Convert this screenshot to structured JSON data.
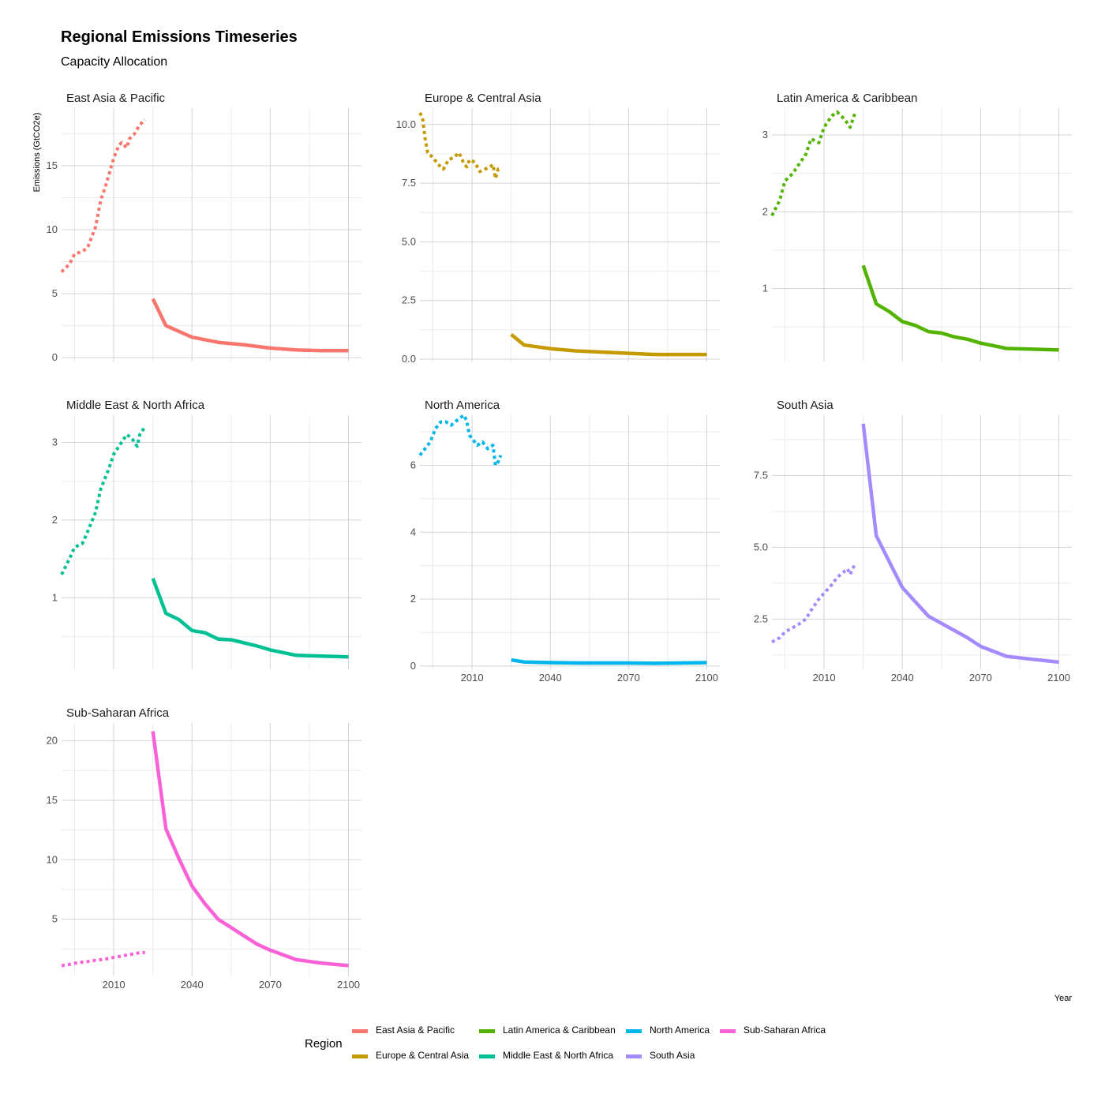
{
  "title": "Regional Emissions Timeseries",
  "subtitle": "Capacity Allocation",
  "chart_data": {
    "type": "line",
    "ylabel": "Emissions (GtCO2e)",
    "xlabel": "Year",
    "xlim": [
      1990,
      2105
    ],
    "x_ticks": [
      2010,
      2040,
      2070,
      2100
    ],
    "grid": true,
    "legend": {
      "title": "Region",
      "placement": "bottom"
    },
    "line_styles": {
      "historical": "dotted",
      "projection": "solid"
    },
    "panels": [
      {
        "name": "East Asia & Pacific",
        "color": "#F8766D",
        "ylim": [
          -0.3,
          19.5
        ],
        "y_ticks": [
          0,
          5,
          10,
          15
        ],
        "y_tick_labels": [
          "0",
          "5",
          "10",
          "15"
        ],
        "historical": {
          "x": [
            1990,
            1993,
            1995,
            1998,
            2000,
            2003,
            2005,
            2007,
            2010,
            2012,
            2013,
            2015,
            2016,
            2018,
            2020,
            2022
          ],
          "y": [
            6.7,
            7.3,
            8.1,
            8.3,
            8.6,
            10.2,
            12.3,
            13.5,
            15.6,
            16.6,
            16.8,
            16.4,
            17.1,
            17.5,
            18.2,
            18.6
          ]
        },
        "projection": {
          "x": [
            2025,
            2030,
            2040,
            2050,
            2060,
            2070,
            2080,
            2090,
            2100
          ],
          "y": [
            4.6,
            2.5,
            1.6,
            1.2,
            1.0,
            0.75,
            0.6,
            0.55,
            0.55
          ]
        }
      },
      {
        "name": "Europe & Central Asia",
        "color": "#C49A00",
        "ylim": [
          -0.1,
          10.7
        ],
        "y_ticks": [
          0,
          2.5,
          5,
          7.5,
          10
        ],
        "y_tick_labels": [
          "0.0",
          "2.5",
          "5.0",
          "7.5",
          "10.0"
        ],
        "historical": {
          "x": [
            1990,
            1991,
            1992,
            1993,
            1995,
            1997,
            1999,
            2001,
            2003,
            2005,
            2007,
            2008,
            2009,
            2011,
            2013,
            2015,
            2017,
            2018,
            2019,
            2020,
            2021
          ],
          "y": [
            10.5,
            10.3,
            9.4,
            8.8,
            8.6,
            8.3,
            8.1,
            8.5,
            8.6,
            8.8,
            8.3,
            8.2,
            8.5,
            8.4,
            8.0,
            8.1,
            8.2,
            8.3,
            7.7,
            8.1,
            8.1
          ]
        },
        "projection": {
          "x": [
            2025,
            2030,
            2040,
            2050,
            2060,
            2070,
            2080,
            2090,
            2100
          ],
          "y": [
            1.05,
            0.6,
            0.45,
            0.35,
            0.3,
            0.25,
            0.2,
            0.2,
            0.2
          ]
        }
      },
      {
        "name": "Latin America & Caribbean",
        "color": "#53B400",
        "ylim": [
          0.05,
          3.35
        ],
        "y_ticks": [
          1,
          2,
          3
        ],
        "y_tick_labels": [
          "1",
          "2",
          "3"
        ],
        "historical": {
          "x": [
            1990,
            1993,
            1995,
            1998,
            2000,
            2003,
            2005,
            2008,
            2010,
            2013,
            2015,
            2018,
            2020,
            2022
          ],
          "y": [
            1.95,
            2.15,
            2.4,
            2.5,
            2.6,
            2.75,
            2.95,
            2.9,
            3.1,
            3.25,
            3.3,
            3.2,
            3.1,
            3.3
          ]
        },
        "projection": {
          "x": [
            2025,
            2030,
            2035,
            2040,
            2045,
            2050,
            2055,
            2060,
            2065,
            2070,
            2080,
            2090,
            2100
          ],
          "y": [
            1.3,
            0.8,
            0.7,
            0.57,
            0.52,
            0.44,
            0.42,
            0.37,
            0.34,
            0.29,
            0.22,
            0.21,
            0.2
          ]
        }
      },
      {
        "name": "Middle East & North Africa",
        "color": "#00C094",
        "ylim": [
          0.08,
          3.35
        ],
        "y_ticks": [
          1,
          2,
          3
        ],
        "y_tick_labels": [
          "1",
          "2",
          "3"
        ],
        "historical": {
          "x": [
            1990,
            1993,
            1995,
            1998,
            2000,
            2003,
            2005,
            2008,
            2010,
            2013,
            2015,
            2017,
            2019,
            2020,
            2021,
            2022
          ],
          "y": [
            1.3,
            1.5,
            1.65,
            1.7,
            1.85,
            2.1,
            2.4,
            2.65,
            2.85,
            3.0,
            3.1,
            3.05,
            2.95,
            3.1,
            3.15,
            3.2
          ]
        },
        "projection": {
          "x": [
            2025,
            2030,
            2035,
            2040,
            2045,
            2050,
            2055,
            2060,
            2065,
            2070,
            2080,
            2090,
            2100
          ],
          "y": [
            1.25,
            0.8,
            0.72,
            0.58,
            0.55,
            0.47,
            0.46,
            0.42,
            0.38,
            0.33,
            0.26,
            0.25,
            0.24
          ]
        }
      },
      {
        "name": "North America",
        "color": "#00B6EB",
        "ylim": [
          -0.1,
          7.5
        ],
        "y_ticks": [
          0,
          2,
          4,
          6
        ],
        "y_tick_labels": [
          "0",
          "2",
          "4",
          "6"
        ],
        "historical": {
          "x": [
            1990,
            1992,
            1994,
            1996,
            1998,
            2000,
            2002,
            2005,
            2007,
            2008,
            2009,
            2010,
            2012,
            2014,
            2016,
            2018,
            2019,
            2020,
            2021
          ],
          "y": [
            6.3,
            6.5,
            6.7,
            7.1,
            7.3,
            7.3,
            7.2,
            7.4,
            7.5,
            7.3,
            6.9,
            6.8,
            6.6,
            6.7,
            6.5,
            6.6,
            6.0,
            6.1,
            6.3
          ]
        },
        "projection": {
          "x": [
            2025,
            2030,
            2040,
            2050,
            2060,
            2070,
            2080,
            2090,
            2100
          ],
          "y": [
            0.18,
            0.12,
            0.1,
            0.09,
            0.09,
            0.09,
            0.08,
            0.09,
            0.1
          ]
        }
      },
      {
        "name": "South Asia",
        "color": "#A58AFF",
        "ylim": [
          0.75,
          9.6
        ],
        "y_ticks": [
          2.5,
          5,
          7.5
        ],
        "y_tick_labels": [
          "2.5",
          "5.0",
          "7.5"
        ],
        "historical": {
          "x": [
            1990,
            1993,
            1995,
            1998,
            2000,
            2003,
            2005,
            2008,
            2010,
            2013,
            2015,
            2017,
            2019,
            2020,
            2022
          ],
          "y": [
            1.7,
            1.85,
            2.05,
            2.2,
            2.3,
            2.5,
            2.8,
            3.2,
            3.4,
            3.7,
            3.95,
            4.1,
            4.25,
            4.05,
            4.45
          ]
        },
        "projection": {
          "x": [
            2025,
            2030,
            2035,
            2040,
            2045,
            2050,
            2055,
            2060,
            2065,
            2070,
            2080,
            2090,
            2100
          ],
          "y": [
            9.3,
            5.4,
            4.5,
            3.6,
            3.1,
            2.6,
            2.35,
            2.1,
            1.85,
            1.55,
            1.2,
            1.1,
            1.0
          ]
        }
      },
      {
        "name": "Sub-Saharan Africa",
        "color": "#FB61D7",
        "ylim": [
          0.2,
          21.5
        ],
        "y_ticks": [
          5,
          10,
          15,
          20
        ],
        "y_tick_labels": [
          "5",
          "10",
          "15",
          "20"
        ],
        "historical": {
          "x": [
            1990,
            1993,
            1995,
            1998,
            2000,
            2003,
            2005,
            2008,
            2010,
            2013,
            2015,
            2018,
            2020,
            2022
          ],
          "y": [
            1.1,
            1.2,
            1.3,
            1.4,
            1.45,
            1.55,
            1.6,
            1.7,
            1.8,
            1.9,
            2.0,
            2.1,
            2.2,
            2.2
          ]
        },
        "projection": {
          "x": [
            2025,
            2030,
            2035,
            2040,
            2045,
            2050,
            2055,
            2060,
            2065,
            2070,
            2080,
            2090,
            2100
          ],
          "y": [
            20.8,
            12.6,
            10.1,
            7.8,
            6.3,
            5.0,
            4.3,
            3.6,
            2.9,
            2.4,
            1.6,
            1.3,
            1.1
          ]
        }
      }
    ]
  }
}
